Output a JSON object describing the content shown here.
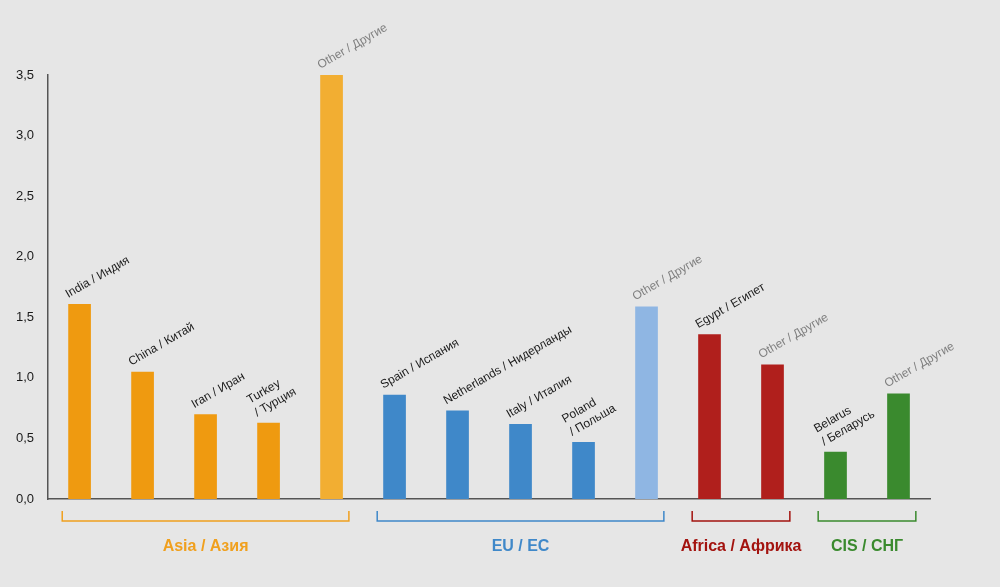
{
  "chart_data": {
    "type": "bar",
    "groups": [
      {
        "name": "Asia / Азия",
        "color": "#f0a01e",
        "categories": [
          "India / Индия",
          "China / Китай",
          "Iran / Иран",
          "Turkey / Турция",
          "Other / Другие"
        ],
        "values": [
          1.61,
          1.05,
          0.7,
          0.63,
          3.5
        ],
        "colors": [
          "#ef9a10",
          "#ef9a10",
          "#ef9a10",
          "#ef9a10",
          "#f2ae32"
        ]
      },
      {
        "name": "EU / ЕС",
        "color": "#3f88c9",
        "categories": [
          "Spain / Испания",
          "Netherlands / Нидерланды",
          "Italy / Италия",
          "Poland / Польша",
          "Other / Другие"
        ],
        "values": [
          0.86,
          0.73,
          0.62,
          0.47,
          1.59
        ],
        "colors": [
          "#3f88c9",
          "#3f88c9",
          "#3f88c9",
          "#3f88c9",
          "#8fb6e3"
        ]
      },
      {
        "name": "Africa / Африка",
        "color": "#a3130f",
        "categories": [
          "Egypt / Египет",
          "Other / Другие"
        ],
        "values": [
          1.36,
          1.11
        ],
        "colors": [
          "#b01f1c",
          "#b01f1c"
        ]
      },
      {
        "name": "CIS / СНГ",
        "color": "#3a8a2e",
        "categories": [
          "Belarus / Беларусь",
          "Other / Другие"
        ],
        "values": [
          0.39,
          0.87
        ],
        "colors": [
          "#3a8a2e",
          "#3a8a2e"
        ]
      }
    ],
    "ylim": [
      0,
      3.5
    ],
    "yticks": [
      {
        "value": 0,
        "label": "0,0"
      },
      {
        "value": 0.5,
        "label": "0,5"
      },
      {
        "value": 1,
        "label": "1,0"
      },
      {
        "value": 1.5,
        "label": "1,5"
      },
      {
        "value": 2,
        "label": "2,0"
      },
      {
        "value": 2.5,
        "label": "2,5"
      },
      {
        "value": 3,
        "label": "3,0"
      },
      {
        "value": 3.5,
        "label": "3,5"
      }
    ],
    "grid": false,
    "tick_labels": "y"
  }
}
